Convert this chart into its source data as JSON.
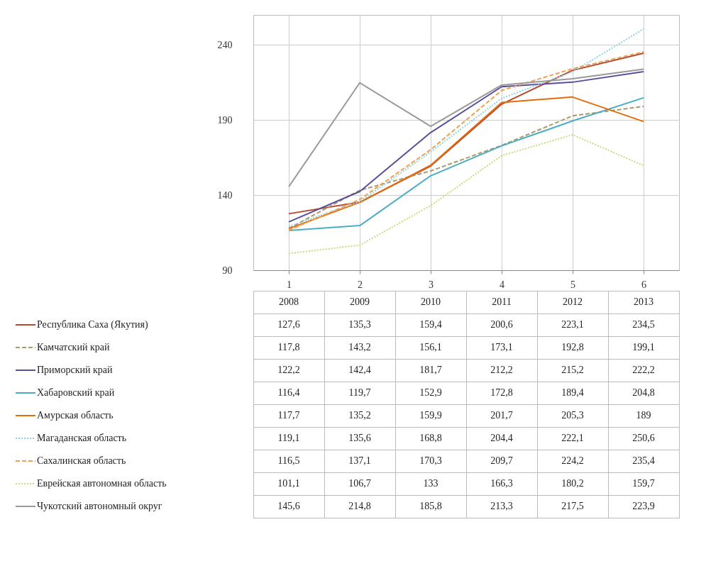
{
  "chart_data": {
    "type": "line",
    "categories": [
      "1",
      "2",
      "3",
      "4",
      "5",
      "6"
    ],
    "ylim": [
      90,
      260
    ],
    "yticks": [
      90,
      140,
      190,
      240
    ],
    "grid": true,
    "legend": "bottom left",
    "annotations": [
      "2008",
      "2009",
      "2010",
      "2011",
      "2012",
      "2013"
    ],
    "series": [
      {
        "name": "Республика Саха (Якутия)",
        "color": "#b5482e",
        "line_style": "solid",
        "values": [
          127.6,
          135.3,
          159.4,
          200.6,
          223.1,
          234.5
        ],
        "value_labels": [
          "127,6",
          "135,3",
          "159,4",
          "200,6",
          "223,1",
          "234,5"
        ]
      },
      {
        "name": "Камчатский край",
        "color": "#a89a6a",
        "line_style": "dashed",
        "values": [
          117.8,
          143.2,
          156.1,
          173.1,
          192.8,
          199.1
        ],
        "value_labels": [
          "117,8",
          "143,2",
          "156,1",
          "173,1",
          "192,8",
          "199,1"
        ]
      },
      {
        "name": "Приморский край",
        "color": "#5a4f9a",
        "line_style": "solid",
        "values": [
          122.2,
          142.4,
          181.7,
          212.2,
          215.2,
          222.2
        ],
        "value_labels": [
          "122,2",
          "142,4",
          "181,7",
          "212,2",
          "215,2",
          "222,2"
        ]
      },
      {
        "name": "Хабаровский край",
        "color": "#4bacc6",
        "line_style": "solid",
        "values": [
          116.4,
          119.7,
          152.9,
          172.8,
          189.4,
          204.8
        ],
        "value_labels": [
          "116,4",
          "119,7",
          "152,9",
          "172,8",
          "189,4",
          "204,8"
        ]
      },
      {
        "name": "Амурская область",
        "color": "#e46c0a",
        "line_style": "solid",
        "values": [
          117.7,
          135.2,
          159.9,
          201.7,
          205.3,
          189
        ],
        "value_labels": [
          "117,7",
          "135,2",
          "159,9",
          "201,7",
          "205,3",
          "189"
        ]
      },
      {
        "name": "Магаданская область",
        "color": "#8fd0e8",
        "line_style": "dotted",
        "values": [
          119.1,
          135.6,
          168.8,
          204.4,
          222.1,
          250.6
        ],
        "value_labels": [
          "119,1",
          "135,6",
          "168,8",
          "204,4",
          "222,1",
          "250,6"
        ]
      },
      {
        "name": "Сахалинская область",
        "color": "#f0a050",
        "line_style": "dashed",
        "values": [
          116.5,
          137.1,
          170.3,
          209.7,
          224.2,
          235.4
        ],
        "value_labels": [
          "116,5",
          "137,1",
          "170,3",
          "209,7",
          "224,2",
          "235,4"
        ]
      },
      {
        "name": "Еврейская автономная область",
        "color": "#d4d67a",
        "line_style": "dotted",
        "values": [
          101.1,
          106.7,
          133,
          166.3,
          180.2,
          159.7
        ],
        "value_labels": [
          "101,1",
          "106,7",
          "133",
          "166,3",
          "180,2",
          "159,7"
        ]
      },
      {
        "name": "Чукотский автономный округ",
        "color": "#999999",
        "line_style": "solid",
        "values": [
          145.6,
          214.8,
          185.8,
          213.3,
          217.5,
          223.9
        ],
        "value_labels": [
          "145,6",
          "214,8",
          "185,8",
          "213,3",
          "217,5",
          "223,9"
        ]
      }
    ]
  }
}
